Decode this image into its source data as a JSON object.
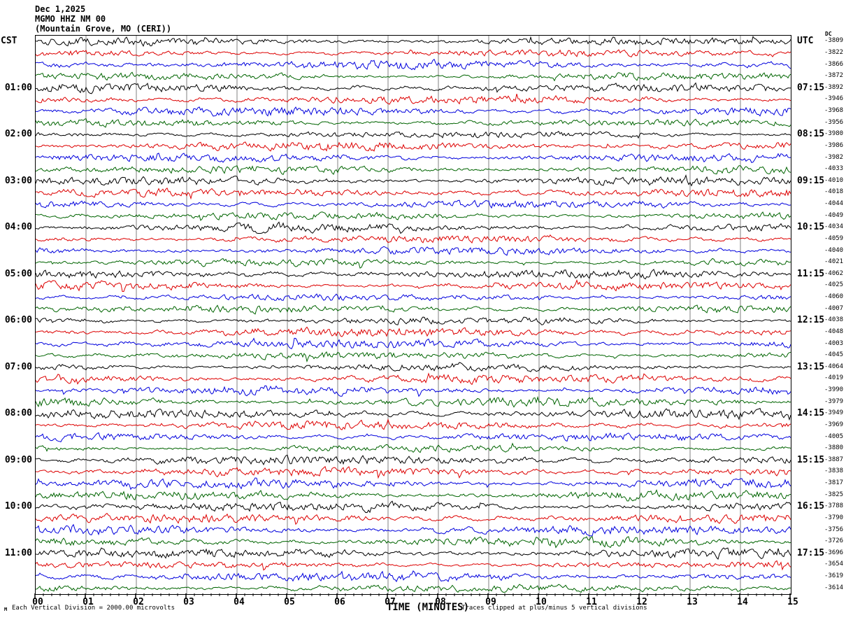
{
  "header": {
    "date": "Dec 1,2025",
    "station": "MGMO HHZ NM 00",
    "location": "(Mountain Grove, MO (CERI))"
  },
  "axes": {
    "left_header": "CST",
    "right_header": "UTC",
    "dc_header": "DC",
    "x_label": "TIME (MINUTES)",
    "x_ticks": [
      "00",
      "01",
      "02",
      "03",
      "04",
      "05",
      "06",
      "07",
      "08",
      "09",
      "10",
      "11",
      "12",
      "13",
      "14",
      "15"
    ]
  },
  "footer": {
    "logo_mark": "M",
    "scale_note": "Each Vertical Division = 2000.00 microvolts",
    "clip_note": "Traces clipped at plus/minus 5 vertical divisions"
  },
  "chart_data": {
    "type": "line",
    "subtype": "helicorder-seismogram",
    "title": "MGMO HHZ NM 00 (Mountain Grove, MO (CERI)) Dec 1,2025",
    "xlabel": "TIME (MINUTES)",
    "x_range_minutes": [
      0,
      15
    ],
    "minutes_per_line": 15,
    "lines_per_hour": 4,
    "grid": "vertical line at every minute, gray",
    "grid_color": "#808080",
    "trace_colors": [
      "#000000",
      "#dd0000",
      "#0000dd",
      "#006400"
    ],
    "clip_divisions": 5,
    "microvolts_per_division": 2000.0,
    "rows": [
      {
        "left": "",
        "right": "",
        "dc": -3809
      },
      {
        "left": "",
        "right": "",
        "dc": -3822
      },
      {
        "left": "",
        "right": "",
        "dc": -3866
      },
      {
        "left": "",
        "right": "",
        "dc": -3872
      },
      {
        "left": "01:00",
        "right": "07:15",
        "dc": -3892
      },
      {
        "left": "",
        "right": "",
        "dc": -3946
      },
      {
        "left": "",
        "right": "",
        "dc": -3968
      },
      {
        "left": "",
        "right": "",
        "dc": -3956
      },
      {
        "left": "02:00",
        "right": "08:15",
        "dc": -3980
      },
      {
        "left": "",
        "right": "",
        "dc": -3986
      },
      {
        "left": "",
        "right": "",
        "dc": -3982
      },
      {
        "left": "",
        "right": "",
        "dc": -4033
      },
      {
        "left": "03:00",
        "right": "09:15",
        "dc": -4010
      },
      {
        "left": "",
        "right": "",
        "dc": -4018
      },
      {
        "left": "",
        "right": "",
        "dc": -4044
      },
      {
        "left": "",
        "right": "",
        "dc": -4049
      },
      {
        "left": "04:00",
        "right": "10:15",
        "dc": -4034
      },
      {
        "left": "",
        "right": "",
        "dc": -4059
      },
      {
        "left": "",
        "right": "",
        "dc": -4040
      },
      {
        "left": "",
        "right": "",
        "dc": -4021
      },
      {
        "left": "05:00",
        "right": "11:15",
        "dc": -4062
      },
      {
        "left": "",
        "right": "",
        "dc": -4025
      },
      {
        "left": "",
        "right": "",
        "dc": -4060
      },
      {
        "left": "",
        "right": "",
        "dc": -4007
      },
      {
        "left": "06:00",
        "right": "12:15",
        "dc": -4038
      },
      {
        "left": "",
        "right": "",
        "dc": -4048
      },
      {
        "left": "",
        "right": "",
        "dc": -4003
      },
      {
        "left": "",
        "right": "",
        "dc": -4045
      },
      {
        "left": "07:00",
        "right": "13:15",
        "dc": -4064
      },
      {
        "left": "",
        "right": "",
        "dc": -4019
      },
      {
        "left": "",
        "right": "",
        "dc": -3990
      },
      {
        "left": "",
        "right": "",
        "dc": -3979
      },
      {
        "left": "08:00",
        "right": "14:15",
        "dc": -3949
      },
      {
        "left": "",
        "right": "",
        "dc": -3969
      },
      {
        "left": "",
        "right": "",
        "dc": -4005
      },
      {
        "left": "",
        "right": "",
        "dc": -3880
      },
      {
        "left": "09:00",
        "right": "15:15",
        "dc": -3887
      },
      {
        "left": "",
        "right": "",
        "dc": -3838
      },
      {
        "left": "",
        "right": "",
        "dc": -3817
      },
      {
        "left": "",
        "right": "",
        "dc": -3825
      },
      {
        "left": "10:00",
        "right": "16:15",
        "dc": -3788
      },
      {
        "left": "",
        "right": "",
        "dc": -3790
      },
      {
        "left": "",
        "right": "",
        "dc": -3756
      },
      {
        "left": "",
        "right": "",
        "dc": -3726
      },
      {
        "left": "11:00",
        "right": "17:15",
        "dc": -3696
      },
      {
        "left": "",
        "right": "",
        "dc": -3654
      },
      {
        "left": "",
        "right": "",
        "dc": -3619
      },
      {
        "left": "",
        "right": "",
        "dc": -3614
      }
    ]
  }
}
